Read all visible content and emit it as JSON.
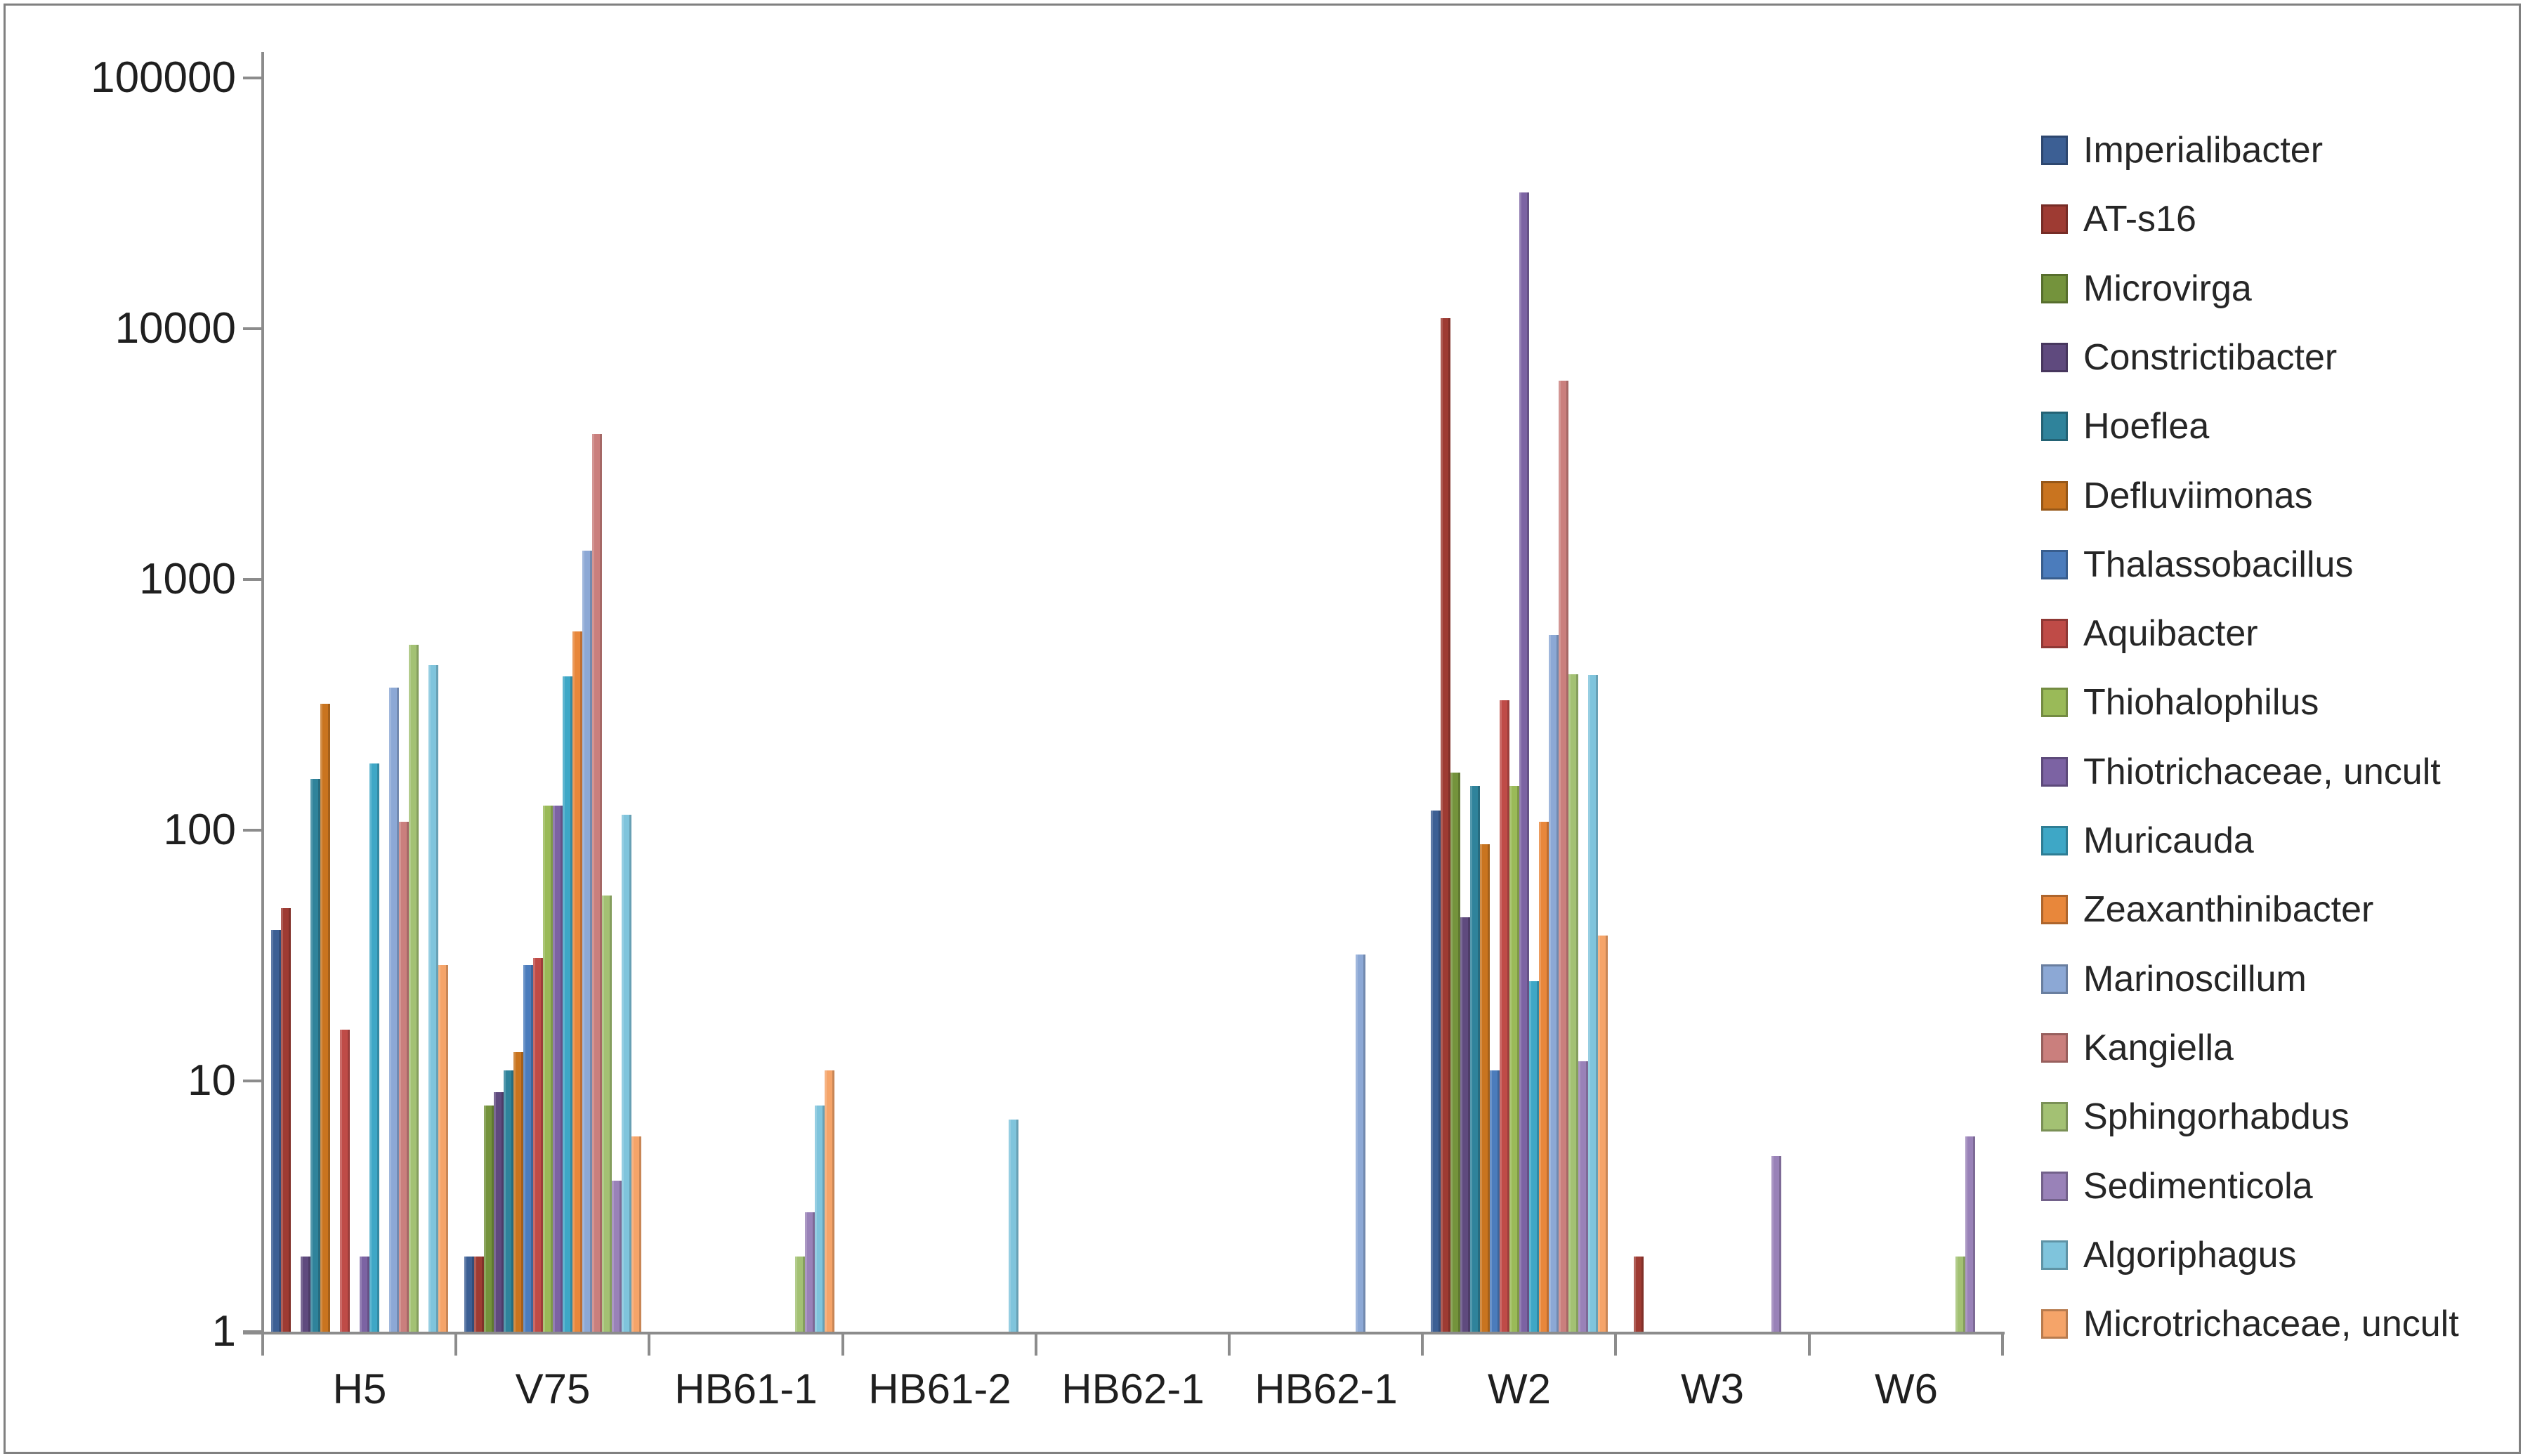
{
  "chart_data": {
    "type": "bar",
    "scale": "log",
    "title": "",
    "xlabel": "",
    "ylabel": "",
    "categories": [
      "H5",
      "V75",
      "HB61-1",
      "HB61-2",
      "HB62-1",
      "HB62-1",
      "W2",
      "W3",
      "W6"
    ],
    "y_ticks": [
      "1",
      "10",
      "100",
      "1000",
      "10000",
      "100000"
    ],
    "ylim": [
      1,
      100000
    ],
    "grid": "off",
    "legend_position": "right",
    "series": [
      {
        "name": "Imperialibacter",
        "color": "#3C5F94",
        "values": [
          40,
          2,
          0,
          0,
          0,
          0,
          120,
          0,
          0
        ]
      },
      {
        "name": "AT-s16",
        "color": "#9E3B33",
        "values": [
          49,
          2,
          0,
          0,
          0,
          0,
          11000,
          2,
          0
        ]
      },
      {
        "name": "Microvirga",
        "color": "#74933C",
        "values": [
          0,
          8,
          0,
          0,
          0,
          0,
          170,
          0,
          0
        ]
      },
      {
        "name": "Constrictibacter",
        "color": "#5F4A7E",
        "values": [
          2,
          9,
          0,
          0,
          0,
          0,
          45,
          0,
          0
        ]
      },
      {
        "name": "Hoeflea",
        "color": "#2F839B",
        "values": [
          160,
          11,
          0,
          0,
          0,
          0,
          150,
          0,
          0
        ]
      },
      {
        "name": "Defluviimonas",
        "color": "#C9741F",
        "values": [
          320,
          13,
          0,
          0,
          0,
          0,
          88,
          0,
          0
        ]
      },
      {
        "name": "Thalassobacillus",
        "color": "#4B7CBC",
        "values": [
          0,
          29,
          0,
          0,
          0,
          0,
          11,
          0,
          0
        ]
      },
      {
        "name": "Aquibacter",
        "color": "#BF4B47",
        "values": [
          16,
          31,
          0,
          0,
          0,
          0,
          330,
          0,
          0
        ]
      },
      {
        "name": "Thiohalophilus",
        "color": "#9ABA58",
        "values": [
          0,
          125,
          0,
          0,
          0,
          0,
          150,
          0,
          0
        ]
      },
      {
        "name": "Thiotrichaceae, uncult",
        "color": "#7C63A3",
        "values": [
          2,
          125,
          0,
          0,
          0,
          0,
          35000,
          0,
          0
        ]
      },
      {
        "name": "Muricauda",
        "color": "#3EA7C6",
        "values": [
          185,
          410,
          0,
          0,
          0,
          0,
          25,
          0,
          0
        ]
      },
      {
        "name": "Zeaxanthinibacter",
        "color": "#E8873B",
        "values": [
          0,
          620,
          0,
          0,
          0,
          0,
          108,
          0,
          0
        ]
      },
      {
        "name": "Marinoscillum",
        "color": "#8CA8D5",
        "values": [
          370,
          1300,
          0,
          0,
          0,
          32,
          600,
          0,
          0
        ]
      },
      {
        "name": "Kangiella",
        "color": "#CA7F7D",
        "values": [
          108,
          3800,
          0,
          0,
          0,
          0,
          6200,
          0,
          0
        ]
      },
      {
        "name": "Sphingorhabdus",
        "color": "#A3C173",
        "values": [
          550,
          55,
          2,
          0,
          0,
          0,
          420,
          0,
          2
        ]
      },
      {
        "name": "Sedimenticola",
        "color": "#9982B8",
        "values": [
          0,
          4,
          3,
          0,
          0,
          0,
          12,
          5,
          6
        ]
      },
      {
        "name": "Algoriphagus",
        "color": "#7FC4DC",
        "values": [
          455,
          115,
          8,
          7,
          0,
          0,
          415,
          0,
          0
        ]
      },
      {
        "name": "Microtrichaceae, uncult",
        "color": "#F5A469",
        "values": [
          29,
          6,
          11,
          0,
          0,
          0,
          38,
          0,
          0
        ]
      }
    ]
  },
  "axis": {
    "line_color": "#8c8c8c",
    "label_color": "#262626"
  }
}
